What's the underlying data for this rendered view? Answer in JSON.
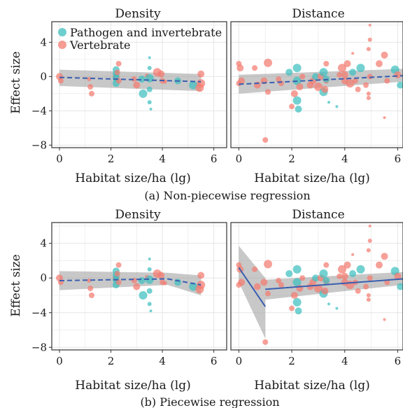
{
  "colors": {
    "pathogen_invertebrate": "#3fbfbf",
    "vertebrate": "#f47c70",
    "fit_line": "#3a5fb0",
    "ci_band": "#9a9a9a",
    "grid": "#e6e6e6",
    "panel_border": "#333333"
  },
  "legend": {
    "items": [
      {
        "label": "Pathogen and invertebrate",
        "color_key": "pathogen_invertebrate"
      },
      {
        "label": "Vertebrate",
        "color_key": "vertebrate"
      }
    ]
  },
  "figure_a": {
    "caption": "(a) Non-piecewise regression"
  },
  "figure_b": {
    "caption": "(b) Piecewise regression"
  },
  "chart_data": [
    {
      "type": "scatter",
      "figure": "a",
      "facet": "Density",
      "xlabel": "Habitat size/ha (lg)",
      "ylabel": "Effect size",
      "xlim": [
        -0.3,
        6.5
      ],
      "ylim": [
        -8.3,
        6.4
      ],
      "xticks": [
        0,
        2,
        4,
        6
      ],
      "yticks": [
        -8,
        -4,
        0,
        4
      ],
      "grid": true,
      "legend_position": "top-left",
      "fit": {
        "kind": "linear",
        "x": [
          0,
          5.5
        ],
        "y": [
          -0.1,
          -0.6
        ],
        "ci_lower": [
          -1.1,
          -1.7
        ],
        "ci_upper": [
          0.8,
          0.3
        ]
      },
      "points": [
        {
          "x": 0.0,
          "y": 0.0,
          "g": "v",
          "s": 5
        },
        {
          "x": 0.05,
          "y": -0.5,
          "g": "v",
          "s": 4
        },
        {
          "x": 1.2,
          "y": -1.2,
          "g": "v",
          "s": 4
        },
        {
          "x": 1.25,
          "y": -2.0,
          "g": "v",
          "s": 4
        },
        {
          "x": 1.15,
          "y": -0.3,
          "g": "v",
          "s": 3
        },
        {
          "x": 2.2,
          "y": 0.0,
          "g": "v",
          "s": 5
        },
        {
          "x": 2.2,
          "y": 0.8,
          "g": "p",
          "s": 5
        },
        {
          "x": 2.2,
          "y": 0.3,
          "g": "p",
          "s": 5
        },
        {
          "x": 2.2,
          "y": -0.8,
          "g": "p",
          "s": 5
        },
        {
          "x": 2.25,
          "y": 0.5,
          "g": "v",
          "s": 4
        },
        {
          "x": 2.3,
          "y": 1.5,
          "g": "v",
          "s": 4
        },
        {
          "x": 2.2,
          "y": -0.2,
          "g": "p",
          "s": 5
        },
        {
          "x": 2.3,
          "y": -0.5,
          "g": "v",
          "s": 4
        },
        {
          "x": 2.9,
          "y": -0.3,
          "g": "v",
          "s": 4
        },
        {
          "x": 3.0,
          "y": -1.0,
          "g": "v",
          "s": 5
        },
        {
          "x": 3.2,
          "y": -0.3,
          "g": "p",
          "s": 5
        },
        {
          "x": 3.25,
          "y": -2.0,
          "g": "p",
          "s": 6
        },
        {
          "x": 3.4,
          "y": 0.1,
          "g": "v",
          "s": 3
        },
        {
          "x": 3.5,
          "y": -0.2,
          "g": "p",
          "s": 6
        },
        {
          "x": 3.5,
          "y": -1.5,
          "g": "p",
          "s": 4
        },
        {
          "x": 3.5,
          "y": -3.0,
          "g": "p",
          "s": 3
        },
        {
          "x": 3.5,
          "y": 1.0,
          "g": "p",
          "s": 3
        },
        {
          "x": 3.55,
          "y": -3.8,
          "g": "p",
          "s": 2
        },
        {
          "x": 3.5,
          "y": 2.2,
          "g": "p",
          "s": 2
        },
        {
          "x": 3.8,
          "y": 0.5,
          "g": "v",
          "s": 6
        },
        {
          "x": 3.95,
          "y": 0.3,
          "g": "v",
          "s": 5
        },
        {
          "x": 4.0,
          "y": -0.5,
          "g": "v",
          "s": 4
        },
        {
          "x": 4.1,
          "y": -0.6,
          "g": "v",
          "s": 3
        },
        {
          "x": 4.6,
          "y": -0.5,
          "g": "p",
          "s": 5
        },
        {
          "x": 5.2,
          "y": -1.0,
          "g": "p",
          "s": 6
        },
        {
          "x": 5.45,
          "y": -1.3,
          "g": "v",
          "s": 6
        },
        {
          "x": 5.5,
          "y": 0.3,
          "g": "v",
          "s": 5
        },
        {
          "x": 5.5,
          "y": -0.8,
          "g": "v",
          "s": 6
        }
      ]
    },
    {
      "type": "scatter",
      "figure": "a",
      "facet": "Distance",
      "xlabel": "Habitat size/ha (lg)",
      "ylabel": "Effect size",
      "xlim": [
        -0.3,
        6.2
      ],
      "ylim": [
        -8.3,
        6.4
      ],
      "xticks": [
        0,
        2,
        4,
        6
      ],
      "yticks": [
        -8,
        -4,
        0,
        4
      ],
      "grid": true,
      "fit": {
        "kind": "linear",
        "x": [
          0,
          6.2
        ],
        "y": [
          -0.9,
          0.1
        ],
        "ci_lower": [
          -2.0,
          -0.6
        ],
        "ci_upper": [
          0.2,
          0.9
        ]
      },
      "points": [
        {
          "x": 0.0,
          "y": 1.5,
          "g": "v",
          "s": 4
        },
        {
          "x": 0.05,
          "y": 1.0,
          "g": "v",
          "s": 5
        },
        {
          "x": 0.0,
          "y": -0.8,
          "g": "v",
          "s": 4
        },
        {
          "x": 0.1,
          "y": -0.5,
          "g": "v",
          "s": 5
        },
        {
          "x": 0.6,
          "y": 1.0,
          "g": "v",
          "s": 4
        },
        {
          "x": 0.7,
          "y": -1.0,
          "g": "v",
          "s": 5
        },
        {
          "x": 0.95,
          "y": -0.5,
          "g": "v",
          "s": 5
        },
        {
          "x": 1.1,
          "y": -1.8,
          "g": "v",
          "s": 4
        },
        {
          "x": 1.1,
          "y": 1.6,
          "g": "v",
          "s": 6
        },
        {
          "x": 1.0,
          "y": -7.4,
          "g": "v",
          "s": 4
        },
        {
          "x": 1.5,
          "y": -0.3,
          "g": "v",
          "s": 4
        },
        {
          "x": 1.6,
          "y": -0.8,
          "g": "v",
          "s": 4
        },
        {
          "x": 1.9,
          "y": 0.5,
          "g": "p",
          "s": 5
        },
        {
          "x": 2.0,
          "y": -3.5,
          "g": "v",
          "s": 4
        },
        {
          "x": 2.1,
          "y": -2.0,
          "g": "v",
          "s": 5
        },
        {
          "x": 2.2,
          "y": -2.8,
          "g": "p",
          "s": 6
        },
        {
          "x": 2.25,
          "y": -3.8,
          "g": "p",
          "s": 5
        },
        {
          "x": 2.2,
          "y": 1.0,
          "g": "p",
          "s": 6
        },
        {
          "x": 2.2,
          "y": -0.5,
          "g": "p",
          "s": 6
        },
        {
          "x": 2.3,
          "y": -1.2,
          "g": "v",
          "s": 5
        },
        {
          "x": 2.4,
          "y": 0.0,
          "g": "v",
          "s": 4
        },
        {
          "x": 2.7,
          "y": -1.0,
          "g": "v",
          "s": 5
        },
        {
          "x": 2.8,
          "y": -0.5,
          "g": "v",
          "s": 5
        },
        {
          "x": 2.9,
          "y": 0.0,
          "g": "p",
          "s": 5
        },
        {
          "x": 3.0,
          "y": -1.2,
          "g": "v",
          "s": 6
        },
        {
          "x": 3.1,
          "y": 0.0,
          "g": "v",
          "s": 5
        },
        {
          "x": 3.2,
          "y": -1.8,
          "g": "p",
          "s": 6
        },
        {
          "x": 3.25,
          "y": -1.5,
          "g": "v",
          "s": 5
        },
        {
          "x": 3.3,
          "y": -0.5,
          "g": "v",
          "s": 4
        },
        {
          "x": 3.3,
          "y": 1.5,
          "g": "v",
          "s": 4
        },
        {
          "x": 3.2,
          "y": 0.5,
          "g": "p",
          "s": 6
        },
        {
          "x": 3.3,
          "y": -0.3,
          "g": "p",
          "s": 5
        },
        {
          "x": 3.7,
          "y": -3.5,
          "g": "p",
          "s": 2
        },
        {
          "x": 3.8,
          "y": 0.2,
          "g": "v",
          "s": 4
        },
        {
          "x": 3.9,
          "y": 1.0,
          "g": "v",
          "s": 6
        },
        {
          "x": 4.0,
          "y": 0.2,
          "g": "v",
          "s": 5
        },
        {
          "x": 4.0,
          "y": -0.5,
          "g": "v",
          "s": 5
        },
        {
          "x": 4.1,
          "y": 1.5,
          "g": "v",
          "s": 5
        },
        {
          "x": 4.2,
          "y": -0.8,
          "g": "v",
          "s": 6
        },
        {
          "x": 4.3,
          "y": 0.5,
          "g": "p",
          "s": 5
        },
        {
          "x": 4.4,
          "y": -0.5,
          "g": "v",
          "s": 4
        },
        {
          "x": 4.6,
          "y": 1.0,
          "g": "p",
          "s": 6
        },
        {
          "x": 4.5,
          "y": -1.5,
          "g": "v",
          "s": 4
        },
        {
          "x": 4.8,
          "y": -1.0,
          "g": "v",
          "s": 4
        },
        {
          "x": 4.9,
          "y": -2.0,
          "g": "v",
          "s": 3
        },
        {
          "x": 4.9,
          "y": -2.5,
          "g": "v",
          "s": 3
        },
        {
          "x": 4.95,
          "y": 4.3,
          "g": "v",
          "s": 3
        },
        {
          "x": 4.95,
          "y": 6.0,
          "g": "v",
          "s": 2
        },
        {
          "x": 4.9,
          "y": 3.2,
          "g": "v",
          "s": 3
        },
        {
          "x": 4.95,
          "y": 0.0,
          "g": "v",
          "s": 4
        },
        {
          "x": 5.3,
          "y": 1.5,
          "g": "v",
          "s": 5
        },
        {
          "x": 5.5,
          "y": 2.5,
          "g": "v",
          "s": 5
        },
        {
          "x": 5.5,
          "y": -4.8,
          "g": "v",
          "s": 2
        },
        {
          "x": 5.6,
          "y": -0.5,
          "g": "v",
          "s": 4
        },
        {
          "x": 5.9,
          "y": 0.8,
          "g": "p",
          "s": 6
        },
        {
          "x": 6.0,
          "y": 0.2,
          "g": "v",
          "s": 5
        },
        {
          "x": 6.1,
          "y": -1.0,
          "g": "p",
          "s": 5
        },
        {
          "x": 4.3,
          "y": 2.7,
          "g": "v",
          "s": 2
        },
        {
          "x": 3.4,
          "y": -3.0,
          "g": "p",
          "s": 2
        }
      ]
    },
    {
      "type": "scatter",
      "figure": "b",
      "facet": "Density",
      "xlabel": "Habitat size/ha (lg)",
      "ylabel": "Effect size",
      "xlim": [
        -0.3,
        6.5
      ],
      "ylim": [
        -8.3,
        6.4
      ],
      "xticks": [
        0,
        2,
        4,
        6
      ],
      "yticks": [
        -8,
        -4,
        0,
        4
      ],
      "grid": true,
      "fit": {
        "kind": "piecewise",
        "segments": [
          {
            "x": [
              0,
              4.2
            ],
            "y": [
              -0.3,
              -0.1
            ],
            "ci_lower": [
              -1.4,
              -0.8
            ],
            "ci_upper": [
              0.8,
              0.6
            ]
          },
          {
            "x": [
              4.2,
              5.5
            ],
            "y": [
              -0.1,
              -0.8
            ],
            "ci_lower": [
              -0.8,
              -2.0
            ],
            "ci_upper": [
              0.6,
              0.3
            ]
          }
        ]
      },
      "points_ref": "same as figure a Density"
    },
    {
      "type": "scatter",
      "figure": "b",
      "facet": "Distance",
      "xlabel": "Habitat size/ha (lg)",
      "ylabel": "Effect size",
      "xlim": [
        -0.3,
        6.2
      ],
      "ylim": [
        -8.3,
        6.4
      ],
      "xticks": [
        0,
        2,
        4,
        6
      ],
      "yticks": [
        -8,
        -4,
        0,
        4
      ],
      "grid": true,
      "fit": {
        "kind": "piecewise",
        "segments": [
          {
            "x": [
              0,
              1.0
            ],
            "y": [
              1.2,
              -3.3
            ],
            "ci_lower": [
              -0.5,
              -7.0
            ],
            "ci_upper": [
              3.7,
              0.0
            ]
          },
          {
            "x": [
              1.0,
              6.2
            ],
            "y": [
              -1.3,
              -0.1
            ],
            "ci_lower": [
              -2.5,
              -0.8
            ],
            "ci_upper": [
              -0.2,
              0.7
            ]
          }
        ]
      },
      "points_ref": "same as figure a Distance"
    }
  ],
  "facet_titles": {
    "density": "Density",
    "distance": "Distance"
  },
  "axis_titles": {
    "x": "Habitat size/ha (lg)",
    "y": "Effect size"
  },
  "tick_labels": {
    "x": [
      "0",
      "2",
      "4",
      "6"
    ],
    "y": [
      "-8",
      "-4",
      "0",
      "4"
    ]
  }
}
